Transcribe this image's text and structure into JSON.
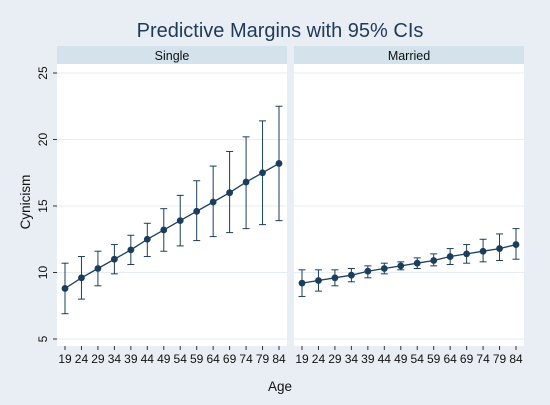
{
  "chart_data": {
    "type": "line",
    "title": "Predictive Margins with 95% CIs",
    "xlabel": "Age",
    "ylabel": "Cynicism",
    "x": [
      19,
      24,
      29,
      34,
      39,
      44,
      49,
      54,
      59,
      64,
      69,
      74,
      79,
      84
    ],
    "ylim": [
      5,
      25
    ],
    "yticks": [
      5,
      10,
      15,
      20,
      25
    ],
    "grid": true,
    "colors": {
      "background": "#e8eef3",
      "plot": "#ffffff",
      "strip": "#d4e2ec",
      "grid": "#e6edf2",
      "series": "#1b3e5c",
      "title": "#1f3a5a"
    },
    "panels": [
      {
        "name": "Single",
        "y": [
          8.8,
          9.6,
          10.3,
          11.0,
          11.7,
          12.5,
          13.2,
          13.9,
          14.6,
          15.3,
          16.0,
          16.8,
          17.5,
          18.2
        ],
        "lower": [
          6.9,
          8.0,
          9.0,
          9.9,
          10.6,
          11.2,
          11.6,
          12.0,
          12.4,
          12.7,
          13.0,
          13.3,
          13.6,
          13.9
        ],
        "upper": [
          10.7,
          11.2,
          11.6,
          12.1,
          12.8,
          13.7,
          14.8,
          15.8,
          16.9,
          18.0,
          19.1,
          20.2,
          21.4,
          22.5
        ]
      },
      {
        "name": "Married",
        "y": [
          9.2,
          9.4,
          9.6,
          9.8,
          10.1,
          10.3,
          10.5,
          10.7,
          10.9,
          11.2,
          11.4,
          11.6,
          11.8,
          12.1
        ],
        "lower": [
          8.2,
          8.6,
          9.0,
          9.3,
          9.6,
          9.9,
          10.2,
          10.3,
          10.5,
          10.6,
          10.7,
          10.8,
          10.9,
          11.0
        ],
        "upper": [
          10.2,
          10.2,
          10.2,
          10.3,
          10.5,
          10.7,
          10.8,
          11.1,
          11.4,
          11.8,
          12.1,
          12.5,
          12.9,
          13.3
        ]
      }
    ]
  }
}
